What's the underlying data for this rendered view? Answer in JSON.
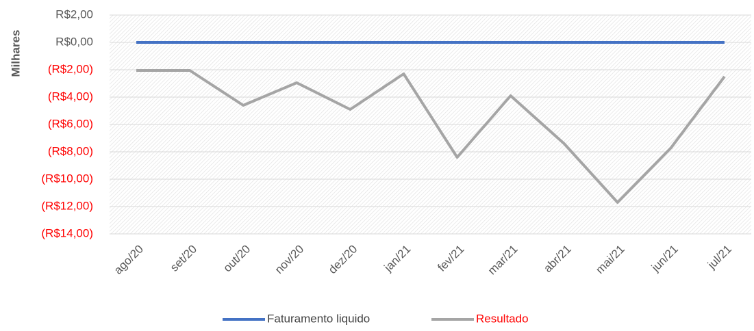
{
  "chart_data": {
    "type": "line",
    "ylabel": "Milhares",
    "categories": [
      "ago/20",
      "set/20",
      "out/20",
      "nov/20",
      "dez/20",
      "jan/21",
      "fev/21",
      "mar/21",
      "abr/21",
      "mai/21",
      "jun/21",
      "jul/21"
    ],
    "series": [
      {
        "name": "Faturamento liquido",
        "color": "#4472c4",
        "label_color": "#404040",
        "values": [
          0,
          0,
          0,
          0,
          0,
          0,
          0,
          0,
          0,
          0,
          0,
          0
        ]
      },
      {
        "name": "Resultado",
        "color": "#a5a5a5",
        "label_color": "#ff0000",
        "values": [
          -2.05,
          -2.05,
          -4.6,
          -2.95,
          -4.9,
          -2.3,
          -8.4,
          -3.9,
          -7.4,
          -11.7,
          -7.7,
          -2.5
        ]
      }
    ],
    "ylim": [
      -14,
      2
    ],
    "yticks": [
      {
        "value": 2,
        "label": "R$2,00"
      },
      {
        "value": 0,
        "label": "R$0,00"
      },
      {
        "value": -2,
        "label": "(R$2,00)"
      },
      {
        "value": -4,
        "label": "(R$4,00)"
      },
      {
        "value": -6,
        "label": "(R$6,00)"
      },
      {
        "value": -8,
        "label": "(R$8,00)"
      },
      {
        "value": -10,
        "label": "(R$10,00)"
      },
      {
        "value": -12,
        "label": "(R$12,00)"
      },
      {
        "value": -14,
        "label": "(R$14,00)"
      }
    ],
    "grid": true,
    "negative_tick_color": "#ff0000",
    "tick_color": "#595959",
    "legend": "bottom"
  }
}
